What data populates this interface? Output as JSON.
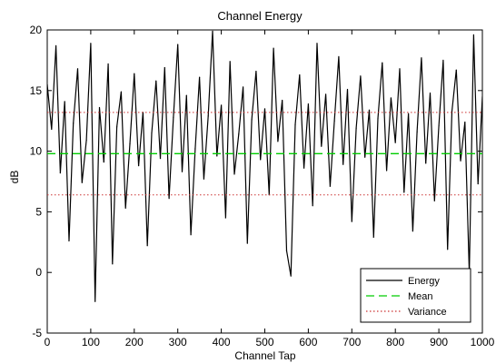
{
  "chart_data": {
    "type": "line",
    "title": "Channel Energy",
    "xlabel": "Channel Tap",
    "ylabel": "dB",
    "xlim": [
      0,
      1000
    ],
    "ylim": [
      -5,
      20
    ],
    "xticks": [
      0,
      100,
      200,
      300,
      400,
      500,
      600,
      700,
      800,
      900,
      1000
    ],
    "yticks": [
      -5,
      0,
      5,
      10,
      15,
      20
    ],
    "grid": false,
    "legend_position": "bottom-right",
    "series": [
      {
        "name": "Energy",
        "color": "#000000",
        "style": "solid",
        "x": [
          0,
          10,
          20,
          30,
          40,
          50,
          60,
          70,
          80,
          90,
          100,
          110,
          120,
          130,
          140,
          150,
          160,
          170,
          180,
          190,
          200,
          210,
          220,
          230,
          240,
          250,
          260,
          270,
          280,
          290,
          300,
          310,
          320,
          330,
          340,
          350,
          360,
          370,
          380,
          390,
          400,
          410,
          420,
          430,
          440,
          450,
          460,
          470,
          480,
          490,
          500,
          510,
          520,
          530,
          540,
          550,
          560,
          570,
          580,
          590,
          600,
          610,
          620,
          630,
          640,
          650,
          660,
          670,
          680,
          690,
          700,
          710,
          720,
          730,
          740,
          750,
          760,
          770,
          780,
          790,
          800,
          810,
          820,
          830,
          840,
          850,
          860,
          870,
          880,
          890,
          900,
          910,
          920,
          930,
          940,
          950,
          960,
          970,
          980,
          990,
          1000
        ],
        "values": [
          15.5,
          11.8,
          18.7,
          8.2,
          14.1,
          2.6,
          12.3,
          16.8,
          7.4,
          10.9,
          18.9,
          -2.4,
          13.6,
          9.1,
          17.2,
          0.7,
          12.0,
          14.9,
          5.3,
          10.6,
          16.4,
          8.8,
          13.2,
          2.2,
          11.5,
          15.8,
          9.4,
          16.9,
          6.1,
          12.8,
          18.8,
          8.3,
          14.6,
          3.1,
          10.2,
          16.1,
          7.7,
          12.9,
          19.9,
          9.6,
          13.8,
          4.5,
          17.4,
          8.1,
          11.4,
          15.3,
          2.4,
          12.6,
          16.6,
          9.3,
          13.5,
          6.4,
          18.5,
          10.8,
          14.2,
          1.8,
          -0.3,
          12.2,
          16.3,
          8.6,
          13.9,
          5.5,
          18.9,
          10.4,
          14.7,
          7.1,
          12.5,
          17.8,
          8.9,
          15.1,
          4.2,
          11.9,
          16.2,
          9.5,
          13.4,
          2.9,
          12.7,
          17.3,
          8.4,
          14.4,
          10.7,
          16.8,
          6.6,
          13.1,
          3.4,
          11.6,
          17.7,
          9.0,
          14.8,
          5.9,
          12.1,
          17.5,
          1.9,
          13.3,
          16.7,
          9.2,
          12.4,
          -0.1,
          19.6,
          7.3,
          14.5
        ]
      },
      {
        "name": "Mean",
        "color": "#00cc00",
        "style": "dashed",
        "x": [
          0,
          1000
        ],
        "values": [
          9.8,
          9.8
        ]
      },
      {
        "name": "Variance",
        "color": "#cc3333",
        "style": "dotted",
        "x": [
          0,
          1000,
          0,
          1000
        ],
        "values": [
          13.2,
          13.2,
          6.4,
          6.4
        ]
      }
    ]
  }
}
